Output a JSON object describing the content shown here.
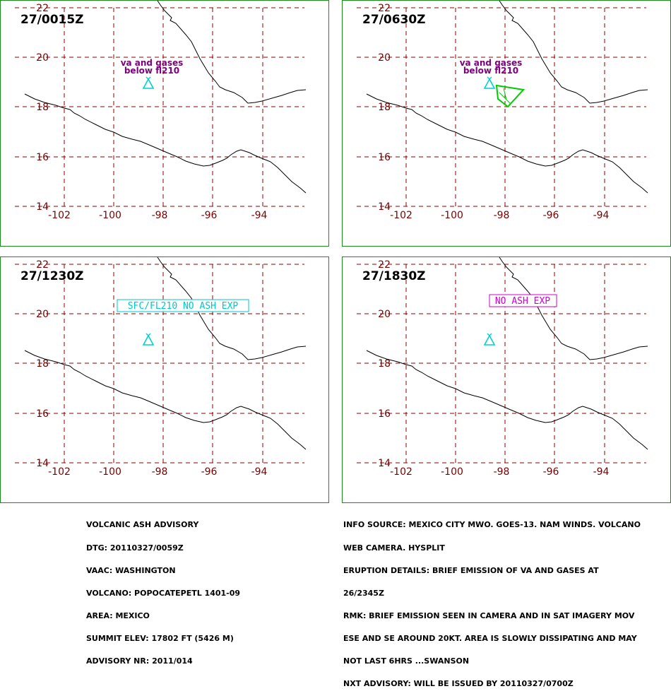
{
  "map": {
    "lon_ticks": [
      "-102",
      "-100",
      "-98",
      "-96",
      "-94"
    ],
    "lat_ticks": [
      "22",
      "20",
      "18",
      "16",
      "14"
    ],
    "colors": {
      "grid": "#8b0000",
      "coast": "#000000",
      "volcano": "#00d0d0",
      "ash": "#00cc00",
      "label_purple": "#800080",
      "label_cyan": "#00c8c8",
      "label_magenta": "#d000d0"
    },
    "volcano_icon": "volcano-triangle-icon"
  },
  "panels": [
    {
      "time": "27/0015Z",
      "annotation_line1": "va and gases",
      "annotation_line2": "below fl210"
    },
    {
      "time": "27/0630Z",
      "annotation_line1": "va and gases",
      "annotation_line2": "below fl210"
    },
    {
      "time": "27/1230Z",
      "box_label": "SFC/FL210 NO ASH EXP"
    },
    {
      "time": "27/1830Z",
      "box_label": "NO ASH EXP"
    }
  ],
  "advisory_left": {
    "lines": [
      "VOLCANIC ASH ADVISORY",
      "DTG: 20110327/0059Z",
      "VAAC: WASHINGTON",
      "VOLCANO: POPOCATEPETL 1401-09",
      "AREA: MEXICO",
      "SUMMIT ELEV: 17802 FT (5426 M)",
      "ADVISORY NR: 2011/014"
    ]
  },
  "advisory_right": {
    "lines": [
      "INFO SOURCE: MEXICO CITY MWO. GOES-13. NAM WINDS. VOLCANO",
      "WEB CAMERA. HYSPLIT",
      "ERUPTION DETAILS: BRIEF EMISSION OF VA AND GASES AT",
      "26/2345Z",
      "RMK: BRIEF EMISSION SEEN IN CAMERA AND IN SAT IMAGERY MOV",
      "ESE AND SE AROUND 20KT. AREA IS SLOWLY DISSIPATING AND MAY",
      "NOT LAST 6HRS ...SWANSON",
      "NXT ADVISORY: WILL BE ISSUED BY 20110327/0700Z"
    ]
  }
}
